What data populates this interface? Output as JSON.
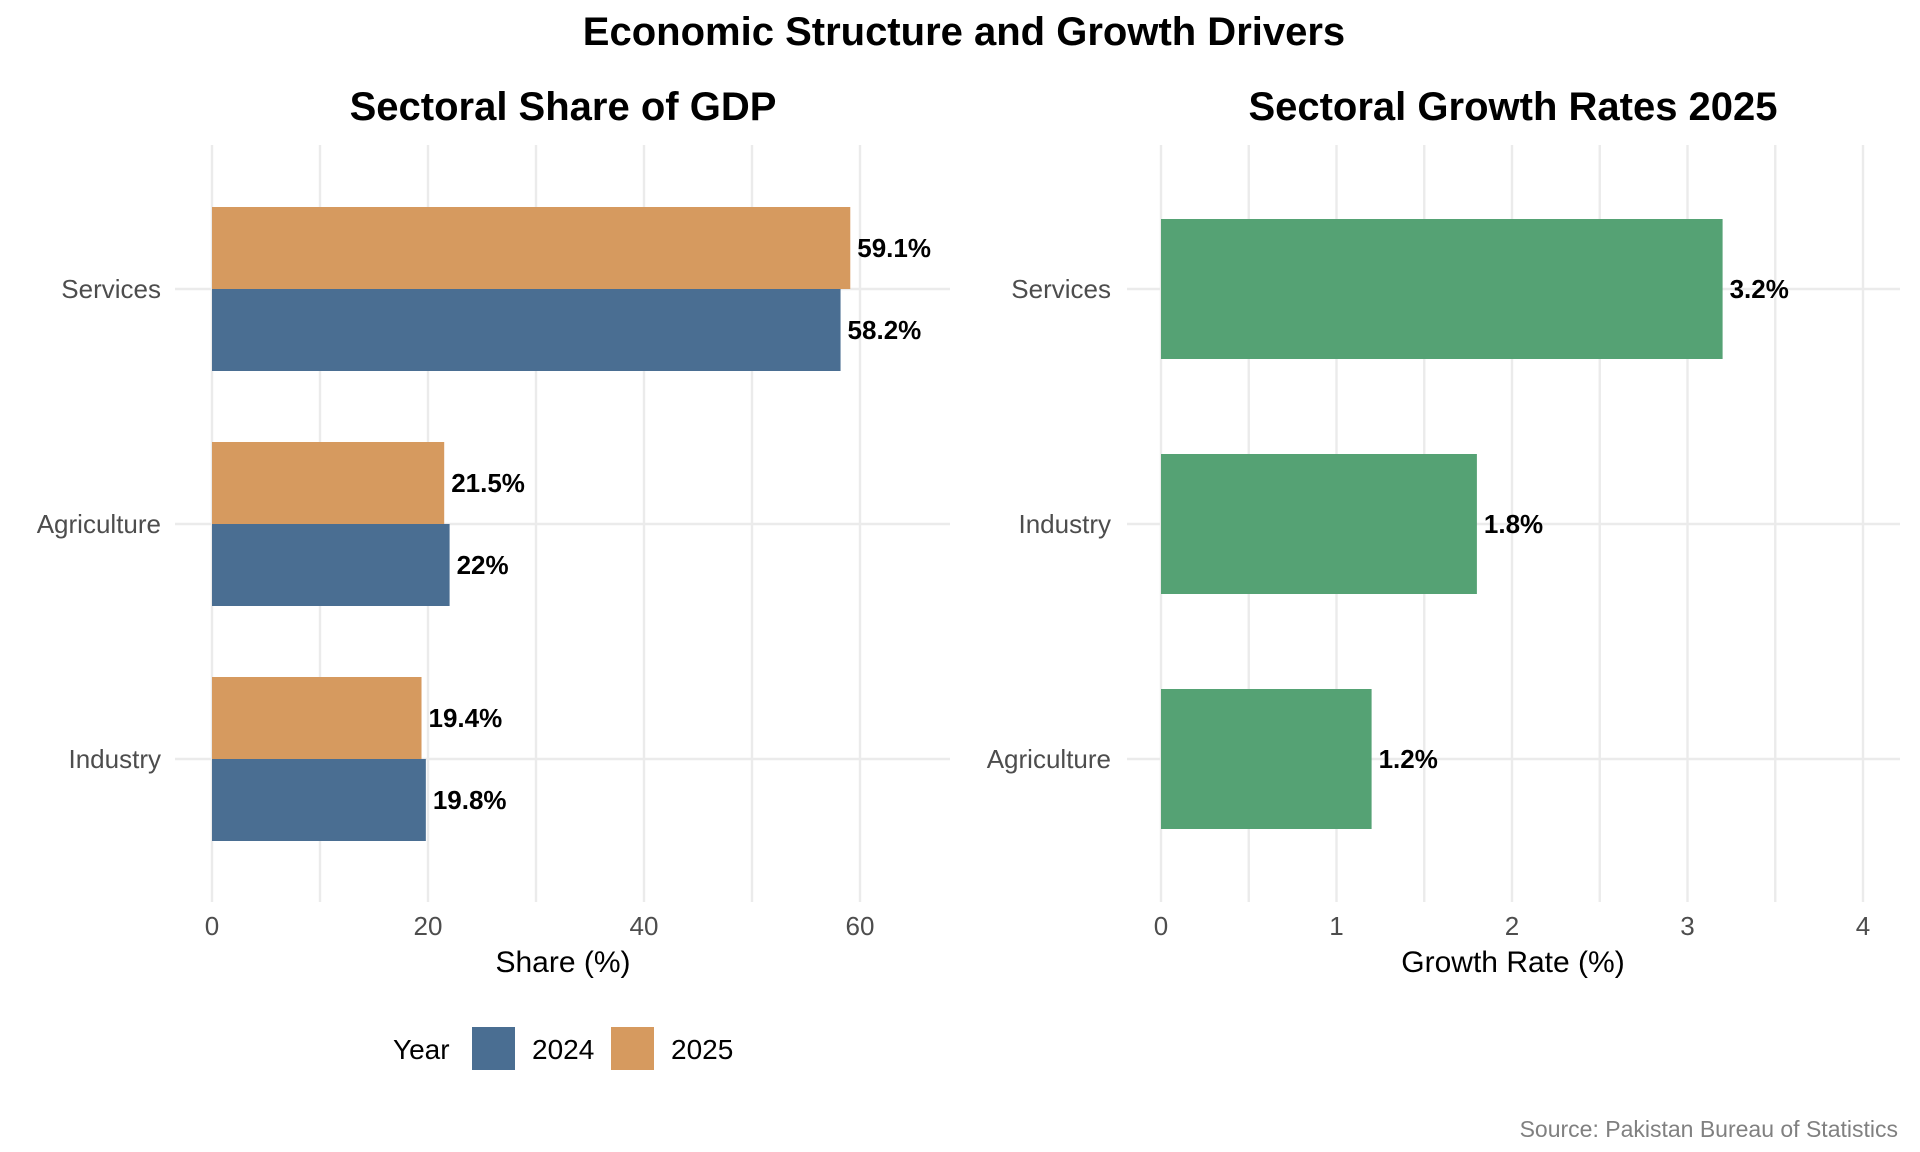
{
  "title": "Economic Structure and Growth Drivers",
  "caption": "Source: Pakistan Bureau of Statistics",
  "legend": {
    "title": "Year",
    "items": [
      {
        "label": "2024",
        "color": "#4a6e92"
      },
      {
        "label": "2025",
        "color": "#d69a5f"
      }
    ]
  },
  "chart_data": [
    {
      "type": "bar",
      "orientation": "horizontal",
      "title": "Sectoral Share of GDP",
      "xlabel": "Share (%)",
      "ylabel": "",
      "xlim": [
        0,
        68
      ],
      "xticks": [
        0,
        20,
        40,
        60
      ],
      "categories": [
        "Services",
        "Agriculture",
        "Industry"
      ],
      "series": [
        {
          "name": "2024",
          "color": "#4a6e92",
          "values": [
            58.2,
            22,
            19.8
          ],
          "labels": [
            "58.2%",
            "22%",
            "19.8%"
          ]
        },
        {
          "name": "2025",
          "color": "#d69a5f",
          "values": [
            59.1,
            21.5,
            19.4
          ],
          "labels": [
            "59.1%",
            "21.5%",
            "19.4%"
          ]
        }
      ],
      "grid": true,
      "legend_position": "bottom"
    },
    {
      "type": "bar",
      "orientation": "horizontal",
      "title": "Sectoral Growth Rates 2025",
      "xlabel": "Growth Rate (%)",
      "ylabel": "",
      "xlim": [
        0,
        4.2
      ],
      "xticks": [
        0,
        1,
        2,
        3,
        4
      ],
      "categories": [
        "Services",
        "Industry",
        "Agriculture"
      ],
      "series": [
        {
          "color": "#55a274",
          "values": [
            3.2,
            1.8,
            1.2
          ],
          "labels": [
            "3.2%",
            "1.8%",
            "1.2%"
          ]
        }
      ],
      "grid": true
    }
  ]
}
